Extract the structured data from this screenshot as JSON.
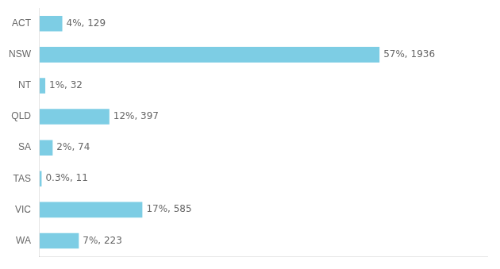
{
  "chart_data": {
    "type": "bar",
    "orientation": "horizontal",
    "categories": [
      "ACT",
      "NSW",
      "NT",
      "QLD",
      "SA",
      "TAS",
      "VIC",
      "WA"
    ],
    "values": [
      129,
      1936,
      32,
      397,
      74,
      11,
      585,
      223
    ],
    "value_labels": [
      "4%, 129",
      "57%, 1936",
      "1%, 32",
      "12%, 397",
      "2%, 74",
      "0.3%, 11",
      "17%, 585",
      "7%, 223"
    ],
    "color": "#7dcde4",
    "xlim": [
      0,
      2550
    ],
    "data_labels": true,
    "tick_labels": "y",
    "grid": false
  }
}
